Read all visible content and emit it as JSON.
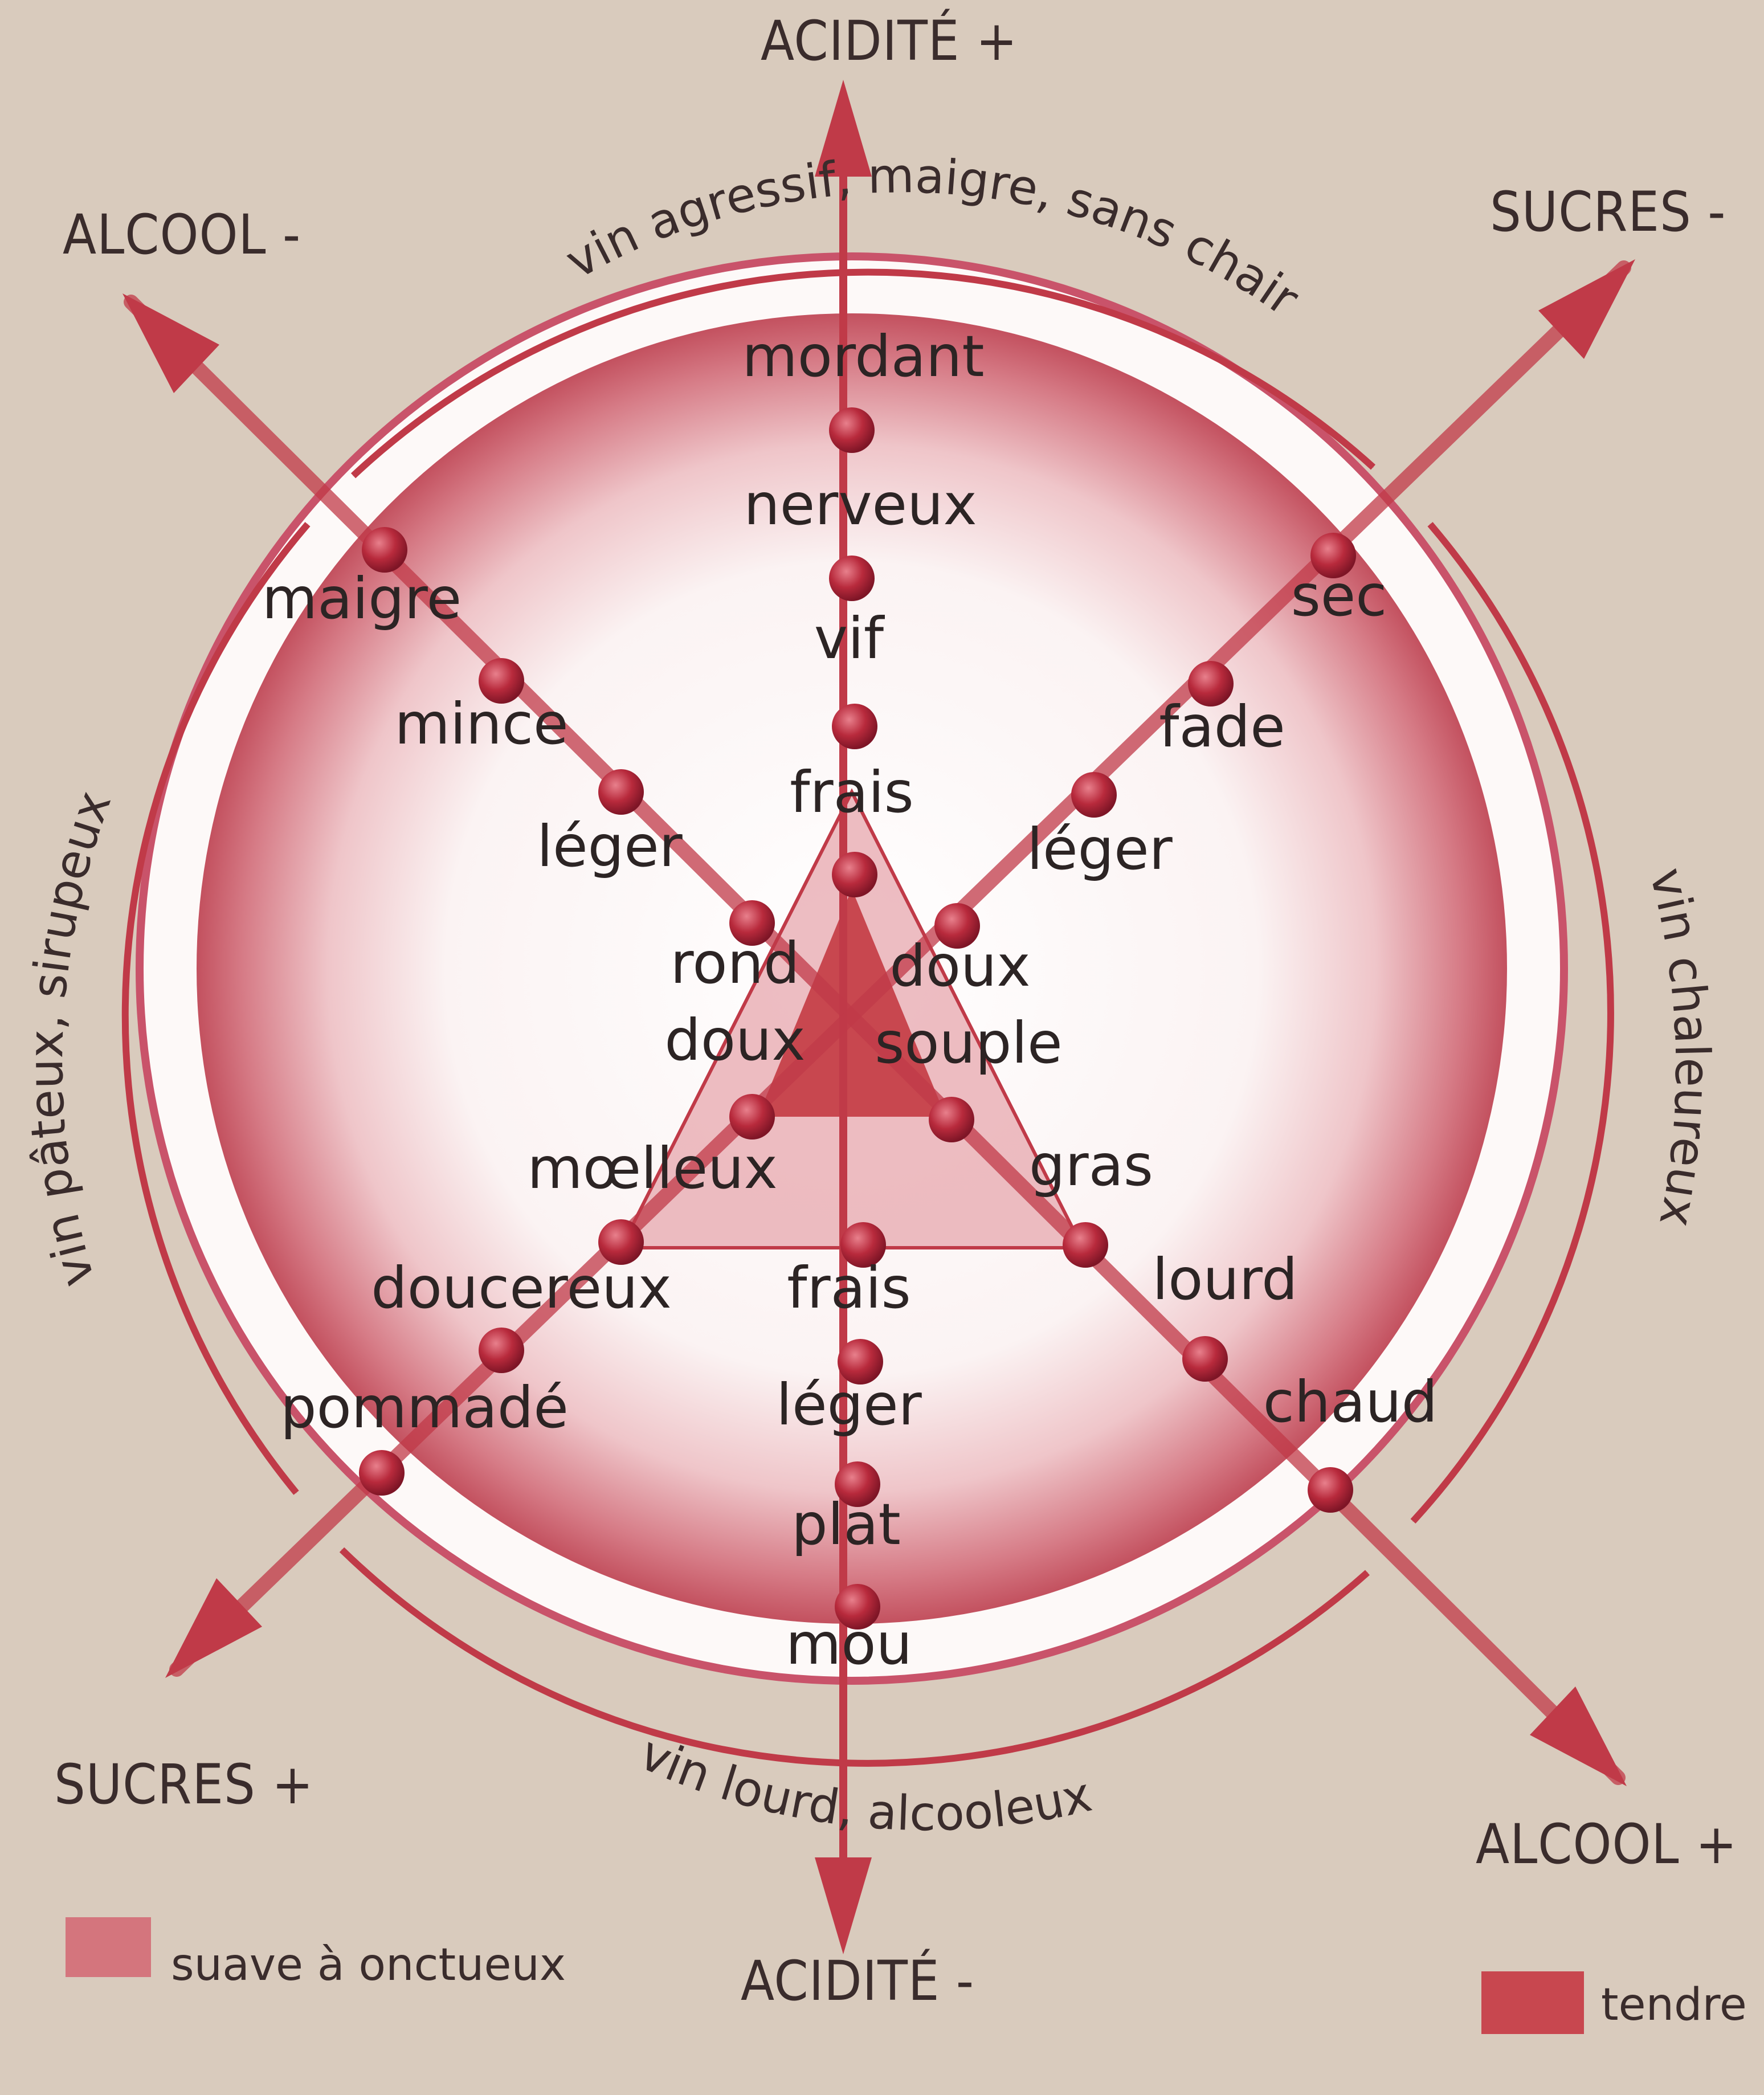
{
  "axes": {
    "acidity_plus": "ACIDITÉ +",
    "acidity_minus": "ACIDITÉ -",
    "alcohol_minus": "ALCOOL -",
    "alcohol_plus": "ALCOOL +",
    "sugar_minus": "SUCRES -",
    "sugar_plus": "SUCRES +"
  },
  "arcs": {
    "top": "vin agressif, maigre, sans chair",
    "right": "vin chaleureux",
    "bottom": "vin lourd, alcooleux",
    "left": "vin pâteux, sirupeux"
  },
  "terms": {
    "acidity_up": [
      "mordant",
      "nerveux",
      "vif",
      "frais"
    ],
    "acidity_down": [
      "frais",
      "léger",
      "plat",
      "mou"
    ],
    "alcohol_up_left": [
      "maigre",
      "mince",
      "léger",
      "rond"
    ],
    "alcohol_down_right": [
      "souple",
      "gras",
      "lourd",
      "chaud"
    ],
    "sugar_up_right": [
      "sec",
      "fade",
      "léger",
      "doux"
    ],
    "sugar_down_left": [
      "doux",
      "mœlleux",
      "doucereux",
      "pommadé"
    ]
  },
  "legend": [
    {
      "label": "suave à onctueux",
      "color": "#d4757d"
    },
    {
      "label": "tendre",
      "color": "#c8474f"
    }
  ],
  "colors": {
    "accent": "#c03a48",
    "dot": "#b2283a",
    "background": "#d9cbbd"
  }
}
